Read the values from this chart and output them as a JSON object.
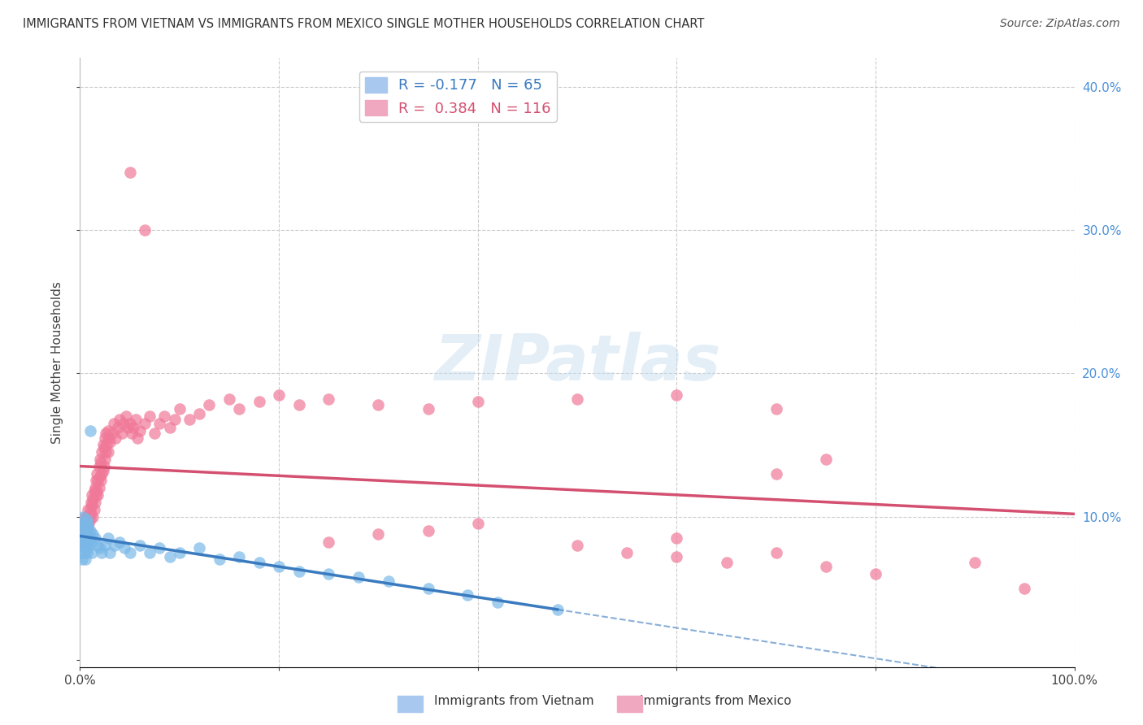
{
  "title": "IMMIGRANTS FROM VIETNAM VS IMMIGRANTS FROM MEXICO SINGLE MOTHER HOUSEHOLDS CORRELATION CHART",
  "source": "Source: ZipAtlas.com",
  "ylabel": "Single Mother Households",
  "xlim": [
    0,
    1.0
  ],
  "ylim": [
    -0.005,
    0.42
  ],
  "yticks": [
    0.0,
    0.1,
    0.2,
    0.3,
    0.4
  ],
  "xticks": [
    0.0,
    0.2,
    0.4,
    0.6,
    0.8,
    1.0
  ],
  "vietnam_color": "#7ab8e8",
  "mexico_color": "#f07898",
  "vietnam_line_color": "#3a7abf",
  "mexico_line_color": "#d45070",
  "background_color": "#ffffff",
  "watermark": "ZIPatlas",
  "vietnam_scatter": [
    [
      0.001,
      0.08
    ],
    [
      0.001,
      0.075
    ],
    [
      0.002,
      0.085
    ],
    [
      0.002,
      0.09
    ],
    [
      0.002,
      0.07
    ],
    [
      0.003,
      0.095
    ],
    [
      0.003,
      0.08
    ],
    [
      0.003,
      0.085
    ],
    [
      0.003,
      0.1
    ],
    [
      0.004,
      0.075
    ],
    [
      0.004,
      0.088
    ],
    [
      0.004,
      0.095
    ],
    [
      0.005,
      0.08
    ],
    [
      0.005,
      0.085
    ],
    [
      0.005,
      0.092
    ],
    [
      0.005,
      0.07
    ],
    [
      0.006,
      0.082
    ],
    [
      0.006,
      0.088
    ],
    [
      0.006,
      0.078
    ],
    [
      0.006,
      0.095
    ],
    [
      0.007,
      0.083
    ],
    [
      0.007,
      0.075
    ],
    [
      0.007,
      0.09
    ],
    [
      0.007,
      0.098
    ],
    [
      0.008,
      0.085
    ],
    [
      0.008,
      0.092
    ],
    [
      0.008,
      0.078
    ],
    [
      0.008,
      0.095
    ],
    [
      0.009,
      0.088
    ],
    [
      0.009,
      0.08
    ],
    [
      0.01,
      0.09
    ],
    [
      0.01,
      0.085
    ],
    [
      0.01,
      0.16
    ],
    [
      0.011,
      0.082
    ],
    [
      0.012,
      0.075
    ],
    [
      0.013,
      0.088
    ],
    [
      0.015,
      0.085
    ],
    [
      0.018,
      0.08
    ],
    [
      0.02,
      0.078
    ],
    [
      0.022,
      0.075
    ],
    [
      0.025,
      0.08
    ],
    [
      0.028,
      0.085
    ],
    [
      0.03,
      0.075
    ],
    [
      0.035,
      0.08
    ],
    [
      0.04,
      0.082
    ],
    [
      0.045,
      0.078
    ],
    [
      0.05,
      0.075
    ],
    [
      0.06,
      0.08
    ],
    [
      0.07,
      0.075
    ],
    [
      0.08,
      0.078
    ],
    [
      0.09,
      0.072
    ],
    [
      0.1,
      0.075
    ],
    [
      0.12,
      0.078
    ],
    [
      0.14,
      0.07
    ],
    [
      0.16,
      0.072
    ],
    [
      0.18,
      0.068
    ],
    [
      0.2,
      0.065
    ],
    [
      0.22,
      0.062
    ],
    [
      0.25,
      0.06
    ],
    [
      0.28,
      0.058
    ],
    [
      0.31,
      0.055
    ],
    [
      0.35,
      0.05
    ],
    [
      0.39,
      0.045
    ],
    [
      0.42,
      0.04
    ],
    [
      0.48,
      0.035
    ]
  ],
  "mexico_scatter": [
    [
      0.001,
      0.082
    ],
    [
      0.001,
      0.088
    ],
    [
      0.002,
      0.09
    ],
    [
      0.002,
      0.085
    ],
    [
      0.002,
      0.092
    ],
    [
      0.003,
      0.085
    ],
    [
      0.003,
      0.095
    ],
    [
      0.003,
      0.088
    ],
    [
      0.004,
      0.09
    ],
    [
      0.004,
      0.085
    ],
    [
      0.004,
      0.095
    ],
    [
      0.005,
      0.088
    ],
    [
      0.005,
      0.092
    ],
    [
      0.005,
      0.1
    ],
    [
      0.005,
      0.08
    ],
    [
      0.006,
      0.095
    ],
    [
      0.006,
      0.088
    ],
    [
      0.006,
      0.092
    ],
    [
      0.007,
      0.1
    ],
    [
      0.007,
      0.09
    ],
    [
      0.007,
      0.095
    ],
    [
      0.008,
      0.098
    ],
    [
      0.008,
      0.105
    ],
    [
      0.008,
      0.092
    ],
    [
      0.009,
      0.1
    ],
    [
      0.009,
      0.095
    ],
    [
      0.01,
      0.105
    ],
    [
      0.01,
      0.098
    ],
    [
      0.011,
      0.11
    ],
    [
      0.011,
      0.102
    ],
    [
      0.012,
      0.108
    ],
    [
      0.012,
      0.115
    ],
    [
      0.013,
      0.1
    ],
    [
      0.013,
      0.112
    ],
    [
      0.014,
      0.105
    ],
    [
      0.014,
      0.118
    ],
    [
      0.015,
      0.11
    ],
    [
      0.015,
      0.12
    ],
    [
      0.016,
      0.115
    ],
    [
      0.016,
      0.125
    ],
    [
      0.017,
      0.118
    ],
    [
      0.017,
      0.13
    ],
    [
      0.018,
      0.125
    ],
    [
      0.018,
      0.115
    ],
    [
      0.019,
      0.12
    ],
    [
      0.019,
      0.135
    ],
    [
      0.02,
      0.128
    ],
    [
      0.02,
      0.14
    ],
    [
      0.021,
      0.125
    ],
    [
      0.021,
      0.138
    ],
    [
      0.022,
      0.13
    ],
    [
      0.022,
      0.145
    ],
    [
      0.023,
      0.132
    ],
    [
      0.023,
      0.15
    ],
    [
      0.024,
      0.135
    ],
    [
      0.024,
      0.148
    ],
    [
      0.025,
      0.14
    ],
    [
      0.025,
      0.155
    ],
    [
      0.026,
      0.145
    ],
    [
      0.026,
      0.158
    ],
    [
      0.027,
      0.15
    ],
    [
      0.028,
      0.145
    ],
    [
      0.028,
      0.16
    ],
    [
      0.029,
      0.155
    ],
    [
      0.03,
      0.152
    ],
    [
      0.032,
      0.158
    ],
    [
      0.034,
      0.165
    ],
    [
      0.036,
      0.155
    ],
    [
      0.038,
      0.162
    ],
    [
      0.04,
      0.168
    ],
    [
      0.042,
      0.158
    ],
    [
      0.044,
      0.165
    ],
    [
      0.046,
      0.17
    ],
    [
      0.048,
      0.162
    ],
    [
      0.05,
      0.165
    ],
    [
      0.052,
      0.158
    ],
    [
      0.054,
      0.162
    ],
    [
      0.056,
      0.168
    ],
    [
      0.058,
      0.155
    ],
    [
      0.06,
      0.16
    ],
    [
      0.065,
      0.165
    ],
    [
      0.07,
      0.17
    ],
    [
      0.075,
      0.158
    ],
    [
      0.08,
      0.165
    ],
    [
      0.085,
      0.17
    ],
    [
      0.09,
      0.162
    ],
    [
      0.095,
      0.168
    ],
    [
      0.1,
      0.175
    ],
    [
      0.11,
      0.168
    ],
    [
      0.12,
      0.172
    ],
    [
      0.13,
      0.178
    ],
    [
      0.15,
      0.182
    ],
    [
      0.16,
      0.175
    ],
    [
      0.18,
      0.18
    ],
    [
      0.2,
      0.185
    ],
    [
      0.22,
      0.178
    ],
    [
      0.25,
      0.182
    ],
    [
      0.3,
      0.178
    ],
    [
      0.35,
      0.175
    ],
    [
      0.4,
      0.18
    ],
    [
      0.5,
      0.182
    ],
    [
      0.6,
      0.185
    ],
    [
      0.7,
      0.175
    ],
    [
      0.05,
      0.34
    ],
    [
      0.065,
      0.3
    ],
    [
      0.5,
      0.08
    ],
    [
      0.55,
      0.075
    ],
    [
      0.6,
      0.072
    ],
    [
      0.65,
      0.068
    ],
    [
      0.7,
      0.075
    ],
    [
      0.75,
      0.065
    ],
    [
      0.8,
      0.06
    ],
    [
      0.9,
      0.068
    ],
    [
      0.95,
      0.05
    ],
    [
      0.6,
      0.085
    ],
    [
      0.75,
      0.14
    ],
    [
      0.7,
      0.13
    ],
    [
      0.4,
      0.095
    ],
    [
      0.35,
      0.09
    ],
    [
      0.3,
      0.088
    ],
    [
      0.25,
      0.082
    ]
  ]
}
